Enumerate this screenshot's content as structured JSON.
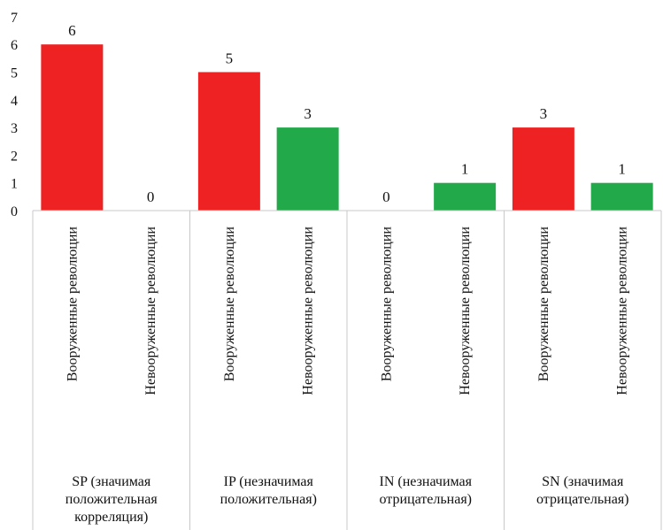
{
  "chart_data": {
    "type": "bar",
    "ylim": [
      0,
      7
    ],
    "yticks": [
      "0",
      "1",
      "2",
      "3",
      "4",
      "5",
      "6",
      "7"
    ],
    "grid": false,
    "colors": {
      "armed": "#ee2222",
      "unarmed": "#22aa4a"
    },
    "groups": [
      {
        "label_lines": [
          "SP (значимая",
          "положительная",
          "корреляция)"
        ],
        "bars": [
          {
            "category": "Вооруженные революции",
            "value": 6,
            "kind": "armed"
          },
          {
            "category": "Невооруженные революции",
            "value": 0,
            "kind": "unarmed"
          }
        ]
      },
      {
        "label_lines": [
          "IP (незначимая",
          "положительная)"
        ],
        "bars": [
          {
            "category": "Вооруженные революции",
            "value": 5,
            "kind": "armed"
          },
          {
            "category": "Невооруженные революции",
            "value": 3,
            "kind": "unarmed"
          }
        ]
      },
      {
        "label_lines": [
          "IN (незначимая",
          "отрицательная)"
        ],
        "bars": [
          {
            "category": "Вооруженные революции",
            "value": 0,
            "kind": "armed"
          },
          {
            "category": "Невооруженные революции",
            "value": 1,
            "kind": "unarmed"
          }
        ]
      },
      {
        "label_lines": [
          "SN (значимая",
          "отрицательная)"
        ],
        "bars": [
          {
            "category": "Вооруженные революции",
            "value": 3,
            "kind": "armed"
          },
          {
            "category": "Невооруженные революции",
            "value": 1,
            "kind": "unarmed"
          }
        ]
      }
    ]
  }
}
